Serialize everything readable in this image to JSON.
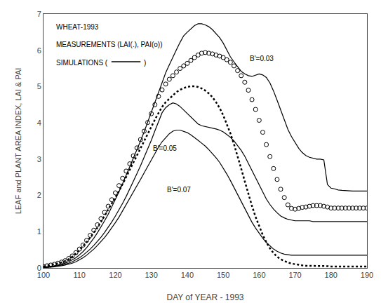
{
  "chart_data": {
    "type": "line",
    "xlabel": "DAY of YEAR - 1993",
    "ylabel": "LEAF and PLANT AREA INDEX, LAI & PAI",
    "x": [
      100,
      101,
      102,
      103,
      104,
      105,
      106,
      107,
      108,
      109,
      110,
      111,
      112,
      113,
      114,
      115,
      116,
      117,
      118,
      119,
      120,
      121,
      122,
      123,
      124,
      125,
      126,
      127,
      128,
      129,
      130,
      131,
      132,
      133,
      134,
      135,
      136,
      137,
      138,
      139,
      140,
      141,
      142,
      143,
      144,
      145,
      146,
      147,
      148,
      149,
      150,
      151,
      152,
      153,
      154,
      155,
      156,
      157,
      158,
      159,
      160,
      161,
      162,
      163,
      164,
      165,
      166,
      167,
      168,
      169,
      170,
      171,
      172,
      173,
      174,
      175,
      176,
      177,
      178,
      179,
      180,
      181,
      182,
      183,
      184,
      185,
      186,
      187,
      188,
      189,
      190
    ],
    "series": [
      {
        "type": "line",
        "color": "#000000",
        "line_style": "solid",
        "values": [
          0.02,
          0.03,
          0.04,
          0.06,
          0.08,
          0.1,
          0.13,
          0.17,
          0.22,
          0.28,
          0.36,
          0.45,
          0.56,
          0.68,
          0.82,
          0.97,
          1.13,
          1.3,
          1.48,
          1.68,
          1.88,
          2.1,
          2.32,
          2.55,
          2.78,
          3.02,
          3.26,
          3.5,
          3.75,
          4.02,
          4.28,
          4.55,
          4.83,
          5.1,
          5.38,
          5.6,
          5.82,
          6.02,
          6.22,
          6.4,
          6.5,
          6.6,
          6.68,
          6.73,
          6.73,
          6.7,
          6.65,
          6.57,
          6.47,
          6.35,
          6.2,
          6.02,
          5.82,
          5.68,
          5.55,
          5.42,
          5.35,
          5.3,
          5.28,
          5.32,
          5.35,
          5.32,
          5.25,
          5.1,
          4.88,
          4.62,
          4.35,
          4.08,
          3.82,
          3.62,
          3.45,
          3.3,
          3.18,
          3.1,
          3.05,
          3.02,
          3.0,
          3.0,
          2.98,
          2.3,
          2.2,
          2.18,
          2.15,
          2.14,
          2.13,
          2.12,
          2.12,
          2.12,
          2.12,
          2.12,
          2.12
        ]
      },
      {
        "type": "line",
        "color": "#000000",
        "line_style": "solid",
        "values": [
          0.01,
          0.02,
          0.03,
          0.04,
          0.06,
          0.08,
          0.1,
          0.13,
          0.17,
          0.22,
          0.28,
          0.35,
          0.43,
          0.52,
          0.62,
          0.73,
          0.85,
          0.98,
          1.12,
          1.27,
          1.43,
          1.6,
          1.78,
          1.97,
          2.17,
          2.38,
          2.6,
          2.82,
          3.05,
          3.28,
          3.52,
          3.78,
          4.02,
          4.28,
          4.42,
          4.5,
          4.55,
          4.52,
          4.45,
          4.35,
          4.25,
          4.15,
          4.05,
          3.97,
          3.92,
          3.9,
          3.88,
          3.86,
          3.83,
          3.8,
          3.75,
          3.68,
          3.6,
          3.5,
          3.38,
          3.24,
          3.08,
          2.88,
          2.68,
          2.48,
          2.28,
          2.08,
          1.9,
          1.75,
          1.62,
          1.52,
          1.43,
          1.38,
          1.34,
          1.32,
          1.3,
          1.3,
          1.3,
          1.3,
          1.3,
          1.28,
          1.28,
          1.28,
          1.28,
          1.28,
          1.28,
          1.28,
          1.28,
          1.28,
          1.28,
          1.28,
          1.28,
          1.28,
          1.28,
          1.28,
          1.28
        ]
      },
      {
        "type": "line",
        "color": "#000000",
        "line_style": "solid",
        "values": [
          0.01,
          0.01,
          0.02,
          0.03,
          0.04,
          0.06,
          0.08,
          0.1,
          0.13,
          0.17,
          0.22,
          0.28,
          0.35,
          0.43,
          0.52,
          0.62,
          0.72,
          0.84,
          0.97,
          1.1,
          1.25,
          1.4,
          1.57,
          1.74,
          1.91,
          2.08,
          2.26,
          2.44,
          2.62,
          2.8,
          2.98,
          3.16,
          3.33,
          3.48,
          3.6,
          3.7,
          3.77,
          3.8,
          3.8,
          3.77,
          3.73,
          3.67,
          3.6,
          3.52,
          3.44,
          3.36,
          3.26,
          3.16,
          3.04,
          2.91,
          2.76,
          2.59,
          2.41,
          2.22,
          2.02,
          1.82,
          1.62,
          1.44,
          1.26,
          1.1,
          0.95,
          0.82,
          0.7,
          0.6,
          0.52,
          0.46,
          0.41,
          0.38,
          0.36,
          0.35,
          0.35,
          0.35,
          0.35,
          0.35,
          0.35,
          0.35,
          0.35,
          0.35,
          0.35,
          0.35,
          0.35,
          0.35,
          0.35,
          0.35,
          0.35,
          0.35,
          0.35,
          0.35,
          0.35,
          0.35,
          0.35
        ]
      },
      {
        "type": "scatter",
        "color": "#000000",
        "marker": "open_circle",
        "values": [
          0.04,
          0.06,
          0.08,
          0.1,
          0.13,
          0.16,
          0.2,
          0.26,
          0.33,
          0.42,
          0.52,
          0.63,
          0.76,
          0.9,
          1.04,
          1.19,
          1.36,
          1.53,
          1.7,
          1.88,
          2.07,
          2.27,
          2.47,
          2.67,
          2.87,
          3.09,
          3.31,
          3.54,
          3.77,
          4.01,
          4.25,
          4.5,
          4.73,
          4.91,
          5.07,
          5.2,
          5.3,
          5.4,
          5.5,
          5.57,
          5.64,
          5.72,
          5.8,
          5.87,
          5.92,
          5.94,
          5.92,
          5.9,
          5.87,
          5.84,
          5.8,
          5.74,
          5.67,
          5.57,
          5.44,
          5.3,
          5.12,
          4.9,
          4.64,
          4.37,
          4.07,
          3.74,
          3.4,
          3.07,
          2.74,
          2.44,
          2.17,
          1.94,
          1.74,
          1.64,
          1.62,
          1.64,
          1.67,
          1.68,
          1.7,
          1.72,
          1.72,
          1.72,
          1.7,
          1.68,
          1.65,
          1.65,
          1.65,
          1.65,
          1.65,
          1.65,
          1.65,
          1.65,
          1.65,
          1.65,
          1.65
        ]
      },
      {
        "type": "line",
        "color": "#000000",
        "line_style": "dotted",
        "values": [
          0.04,
          0.06,
          0.08,
          0.1,
          0.12,
          0.15,
          0.19,
          0.24,
          0.31,
          0.39,
          0.49,
          0.59,
          0.71,
          0.84,
          0.97,
          1.11,
          1.27,
          1.44,
          1.59,
          1.77,
          1.94,
          2.12,
          2.31,
          2.51,
          2.71,
          2.91,
          3.11,
          3.31,
          3.51,
          3.71,
          3.91,
          4.09,
          4.27,
          4.44,
          4.57,
          4.67,
          4.77,
          4.85,
          4.91,
          4.96,
          4.99,
          5.01,
          5.01,
          4.99,
          4.95,
          4.89,
          4.81,
          4.71,
          4.57,
          4.41,
          4.21,
          3.97,
          3.71,
          3.41,
          3.09,
          2.74,
          2.39,
          2.04,
          1.71,
          1.41,
          1.14,
          0.91,
          0.71,
          0.54,
          0.41,
          0.31,
          0.24,
          0.19,
          0.15,
          0.12,
          0.1,
          0.08,
          0.07,
          0.06,
          0.06,
          0.05,
          0.05,
          0.05,
          0.05,
          0.05,
          0.04,
          0.04,
          0.04,
          0.04,
          0.04,
          0.04,
          0.04,
          0.04,
          0.04,
          0.04,
          0.04
        ]
      }
    ],
    "annotations": [
      {
        "text": "B'=0.03",
        "x": 157,
        "y": 5.62
      },
      {
        "text": "B'=0.05",
        "x": 130,
        "y": 3.15
      },
      {
        "text": "B'=0.07",
        "x": 134,
        "y": 2.02
      },
      {
        "text": "WHEAT-1993"
      },
      {
        "text": "MEASUREMENTS (LAI(.), PAI(o))"
      },
      {
        "text": "SIMULATIONS ("
      },
      {
        "text": ")"
      }
    ],
    "xlim": [
      100,
      190
    ],
    "ylim": [
      0,
      7
    ],
    "xticks": [
      100,
      110,
      120,
      130,
      140,
      150,
      160,
      170,
      180,
      190
    ],
    "yticks": [
      0,
      1,
      2,
      3,
      4,
      5,
      6,
      7
    ],
    "grid": false
  }
}
